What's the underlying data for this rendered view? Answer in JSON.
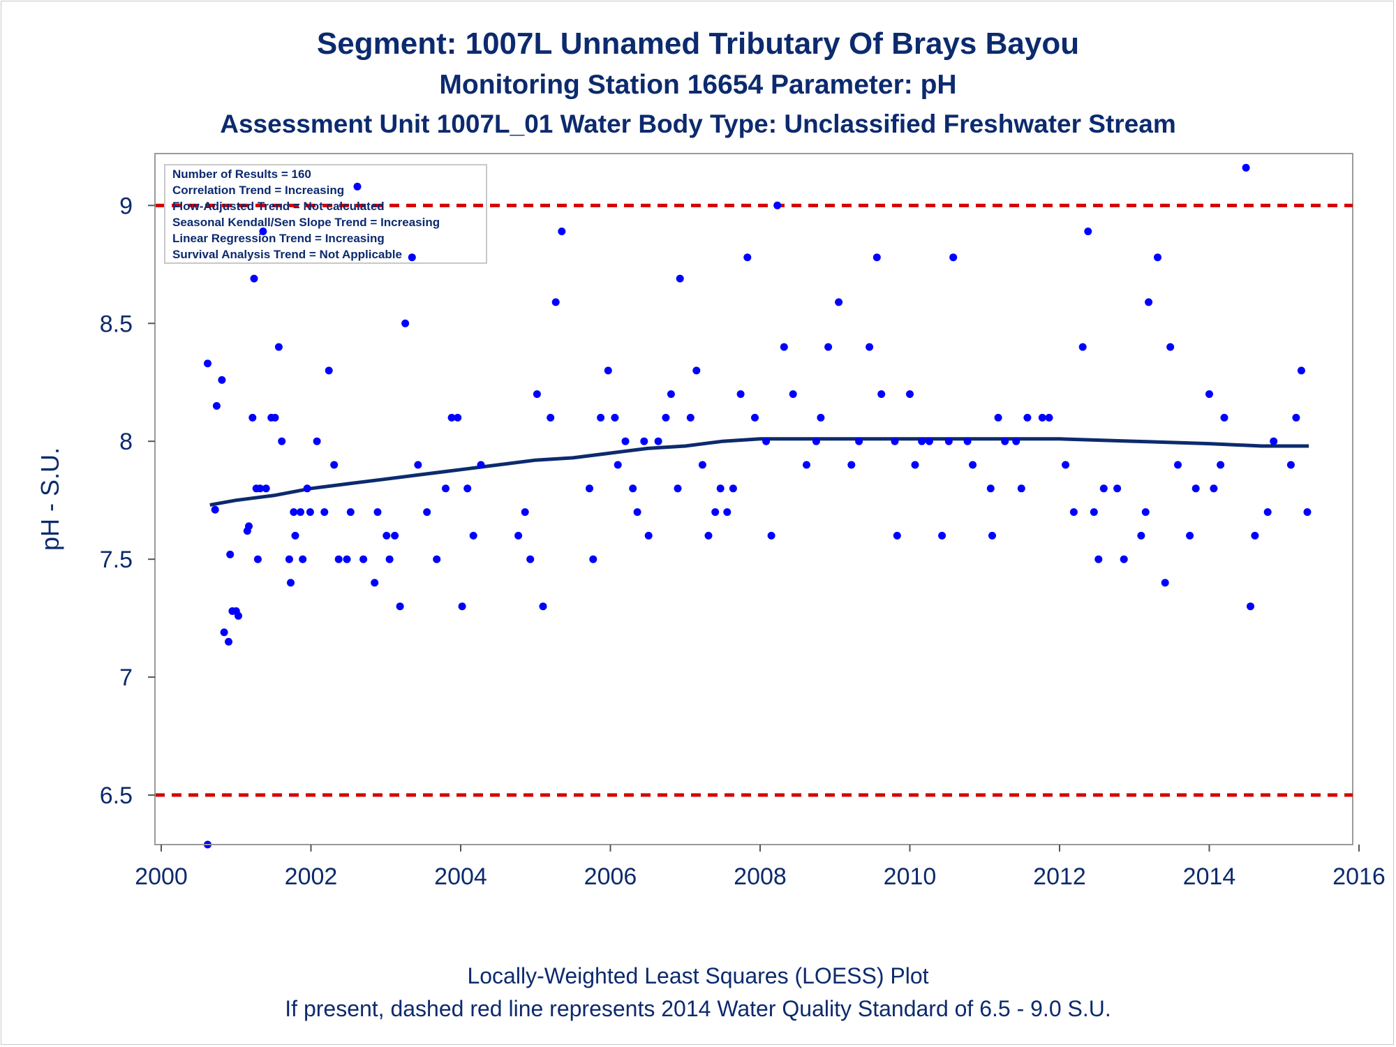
{
  "title": "Segment: 1007L  Unnamed Tributary Of Brays Bayou",
  "subtitle": "Monitoring Station 16654 Parameter: pH",
  "subtitle2": "Assessment Unit 1007L_01   Water Body Type: Unclassified Freshwater Stream",
  "footnote1": "Locally-Weighted Least Squares (LOESS) Plot",
  "footnote2": "If present, dashed red line represents 2014 Water Quality Standard of 6.5 - 9.0 S.U.",
  "colors": {
    "points": "#0000ff",
    "loess": "#0c2a6e",
    "standard": "#d40000",
    "text": "#0c2a6e"
  },
  "chart_data": {
    "type": "scatter",
    "xlabel": "",
    "ylabel": "pH - S.U.",
    "xlim": [
      2000,
      2016
    ],
    "ylim": [
      6.29,
      9.22
    ],
    "xticks": [
      2000,
      2002,
      2004,
      2006,
      2008,
      2010,
      2012,
      2014,
      2016
    ],
    "yticks": [
      6.5,
      7,
      7.5,
      8,
      8.5,
      9
    ],
    "ytick_labels": [
      "6.5",
      "7",
      "7.5",
      "8",
      "8.5",
      "9"
    ],
    "grid": false,
    "legend": {
      "placement": "top-left",
      "lines": [
        "Number of Results = 160",
        "Correlation Trend = Increasing",
        "Flow-Adjusted Trend = Not calculated",
        "Seasonal Kendall/Sen Slope Trend = Increasing",
        "Linear Regression Trend = Increasing",
        "Survival Analysis Trend = Not Applicable"
      ]
    },
    "reference_lines": [
      {
        "y": 9.0,
        "style": "dashed"
      },
      {
        "y": 6.5,
        "style": "dashed"
      }
    ],
    "series": [
      {
        "kind": "points",
        "points": [
          [
            2000.62,
            8.33
          ],
          [
            2000.62,
            6.29
          ],
          [
            2000.72,
            7.71
          ],
          [
            2000.74,
            8.15
          ],
          [
            2000.81,
            8.26
          ],
          [
            2000.84,
            7.19
          ],
          [
            2000.9,
            7.15
          ],
          [
            2000.92,
            7.52
          ],
          [
            2000.95,
            7.28
          ],
          [
            2001.0,
            7.28
          ],
          [
            2001.03,
            7.26
          ],
          [
            2001.15,
            7.62
          ],
          [
            2001.17,
            7.64
          ],
          [
            2001.22,
            8.1
          ],
          [
            2001.24,
            8.69
          ],
          [
            2001.27,
            7.8
          ],
          [
            2001.29,
            7.5
          ],
          [
            2001.32,
            7.8
          ],
          [
            2001.36,
            8.89
          ],
          [
            2001.4,
            7.8
          ],
          [
            2001.47,
            8.1
          ],
          [
            2001.52,
            8.1
          ],
          [
            2001.57,
            8.4
          ],
          [
            2001.61,
            8.0
          ],
          [
            2001.71,
            7.5
          ],
          [
            2001.73,
            7.4
          ],
          [
            2001.77,
            7.7
          ],
          [
            2001.79,
            7.6
          ],
          [
            2001.86,
            7.7
          ],
          [
            2001.89,
            7.5
          ],
          [
            2001.95,
            7.8
          ],
          [
            2001.99,
            7.7
          ],
          [
            2002.08,
            8.0
          ],
          [
            2002.18,
            7.7
          ],
          [
            2002.24,
            8.3
          ],
          [
            2002.31,
            7.9
          ],
          [
            2002.37,
            7.5
          ],
          [
            2002.48,
            7.5
          ],
          [
            2002.53,
            7.7
          ],
          [
            2002.62,
            9.08
          ],
          [
            2002.7,
            7.5
          ],
          [
            2002.85,
            7.4
          ],
          [
            2002.89,
            7.7
          ],
          [
            2003.01,
            7.6
          ],
          [
            2003.05,
            7.5
          ],
          [
            2003.12,
            7.6
          ],
          [
            2003.19,
            7.3
          ],
          [
            2003.26,
            8.5
          ],
          [
            2003.35,
            8.78
          ],
          [
            2003.43,
            7.9
          ],
          [
            2003.55,
            7.7
          ],
          [
            2003.68,
            7.5
          ],
          [
            2003.8,
            7.8
          ],
          [
            2003.88,
            8.1
          ],
          [
            2003.96,
            8.1
          ],
          [
            2004.02,
            7.3
          ],
          [
            2004.09,
            7.8
          ],
          [
            2004.17,
            7.6
          ],
          [
            2004.27,
            7.9
          ],
          [
            2004.77,
            7.6
          ],
          [
            2004.86,
            7.7
          ],
          [
            2004.93,
            7.5
          ],
          [
            2005.02,
            8.2
          ],
          [
            2005.1,
            7.3
          ],
          [
            2005.2,
            8.1
          ],
          [
            2005.27,
            8.59
          ],
          [
            2005.35,
            8.89
          ],
          [
            2005.72,
            7.8
          ],
          [
            2005.77,
            7.5
          ],
          [
            2005.87,
            8.1
          ],
          [
            2005.97,
            8.3
          ],
          [
            2006.06,
            8.1
          ],
          [
            2006.1,
            7.9
          ],
          [
            2006.2,
            8.0
          ],
          [
            2006.3,
            7.8
          ],
          [
            2006.36,
            7.7
          ],
          [
            2006.45,
            8.0
          ],
          [
            2006.51,
            7.6
          ],
          [
            2006.64,
            8.0
          ],
          [
            2006.74,
            8.1
          ],
          [
            2006.81,
            8.2
          ],
          [
            2006.9,
            7.8
          ],
          [
            2006.93,
            8.69
          ],
          [
            2007.07,
            8.1
          ],
          [
            2007.15,
            8.3
          ],
          [
            2007.23,
            7.9
          ],
          [
            2007.31,
            7.6
          ],
          [
            2007.4,
            7.7
          ],
          [
            2007.47,
            7.8
          ],
          [
            2007.56,
            7.7
          ],
          [
            2007.64,
            7.8
          ],
          [
            2007.74,
            8.2
          ],
          [
            2007.83,
            8.78
          ],
          [
            2007.93,
            8.1
          ],
          [
            2008.08,
            8.0
          ],
          [
            2008.15,
            7.6
          ],
          [
            2008.23,
            9.0
          ],
          [
            2008.32,
            8.4
          ],
          [
            2008.44,
            8.2
          ],
          [
            2008.62,
            7.9
          ],
          [
            2008.75,
            8.0
          ],
          [
            2008.81,
            8.1
          ],
          [
            2008.91,
            8.4
          ],
          [
            2009.05,
            8.59
          ],
          [
            2009.22,
            7.9
          ],
          [
            2009.32,
            8.0
          ],
          [
            2009.46,
            8.4
          ],
          [
            2009.56,
            8.78
          ],
          [
            2009.62,
            8.2
          ],
          [
            2009.8,
            8.0
          ],
          [
            2009.83,
            7.6
          ],
          [
            2010.0,
            8.2
          ],
          [
            2010.07,
            7.9
          ],
          [
            2010.16,
            8.0
          ],
          [
            2010.26,
            8.0
          ],
          [
            2010.43,
            7.6
          ],
          [
            2010.52,
            8.0
          ],
          [
            2010.58,
            8.78
          ],
          [
            2010.77,
            8.0
          ],
          [
            2010.84,
            7.9
          ],
          [
            2011.08,
            7.8
          ],
          [
            2011.1,
            7.6
          ],
          [
            2011.18,
            8.1
          ],
          [
            2011.27,
            8.0
          ],
          [
            2011.42,
            8.0
          ],
          [
            2011.49,
            7.8
          ],
          [
            2011.57,
            8.1
          ],
          [
            2011.77,
            8.1
          ],
          [
            2011.86,
            8.1
          ],
          [
            2012.08,
            7.9
          ],
          [
            2012.19,
            7.7
          ],
          [
            2012.31,
            8.4
          ],
          [
            2012.38,
            8.89
          ],
          [
            2012.46,
            7.7
          ],
          [
            2012.52,
            7.5
          ],
          [
            2012.59,
            7.8
          ],
          [
            2012.77,
            7.8
          ],
          [
            2012.86,
            7.5
          ],
          [
            2013.09,
            7.6
          ],
          [
            2013.15,
            7.7
          ],
          [
            2013.19,
            8.59
          ],
          [
            2013.31,
            8.78
          ],
          [
            2013.41,
            7.4
          ],
          [
            2013.48,
            8.4
          ],
          [
            2013.58,
            7.9
          ],
          [
            2013.74,
            7.6
          ],
          [
            2013.82,
            7.8
          ],
          [
            2014.0,
            8.2
          ],
          [
            2014.06,
            7.8
          ],
          [
            2014.15,
            7.9
          ],
          [
            2014.2,
            8.1
          ],
          [
            2014.49,
            9.16
          ],
          [
            2014.55,
            7.3
          ],
          [
            2014.61,
            7.6
          ],
          [
            2014.78,
            7.7
          ],
          [
            2014.86,
            8.0
          ],
          [
            2015.09,
            7.9
          ],
          [
            2015.16,
            8.1
          ],
          [
            2015.23,
            8.3
          ],
          [
            2015.31,
            7.7
          ]
        ]
      },
      {
        "kind": "loess",
        "points": [
          [
            2000.65,
            7.73
          ],
          [
            2001.0,
            7.75
          ],
          [
            2001.5,
            7.77
          ],
          [
            2002.0,
            7.8
          ],
          [
            2002.5,
            7.82
          ],
          [
            2003.0,
            7.84
          ],
          [
            2003.5,
            7.86
          ],
          [
            2004.0,
            7.88
          ],
          [
            2004.5,
            7.9
          ],
          [
            2005.0,
            7.92
          ],
          [
            2005.5,
            7.93
          ],
          [
            2006.0,
            7.95
          ],
          [
            2006.5,
            7.97
          ],
          [
            2007.0,
            7.98
          ],
          [
            2007.5,
            8.0
          ],
          [
            2008.0,
            8.01
          ],
          [
            2008.5,
            8.01
          ],
          [
            2009.0,
            8.01
          ],
          [
            2010.0,
            8.01
          ],
          [
            2011.0,
            8.01
          ],
          [
            2012.0,
            8.01
          ],
          [
            2013.0,
            8.0
          ],
          [
            2014.0,
            7.99
          ],
          [
            2014.7,
            7.98
          ],
          [
            2015.33,
            7.98
          ]
        ]
      }
    ]
  }
}
